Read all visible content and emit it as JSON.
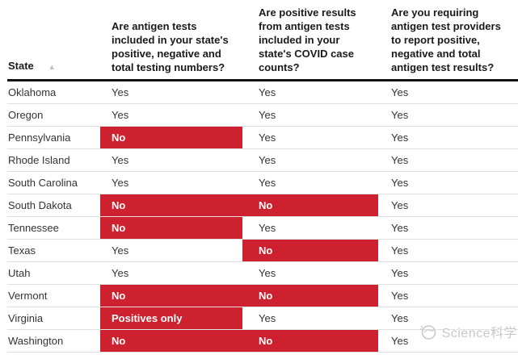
{
  "chart_data": {
    "type": "table",
    "columns": [
      {
        "label": "State",
        "sortable": true,
        "sort_icon": "ascending-triangle"
      },
      {
        "label": "Are antigen tests\nincluded in your state's\npositive, negative and\ntotal testing numbers?"
      },
      {
        "label": "Are positive results\nfrom antigen tests\nincluded in your\nstate's COVID case\ncounts?"
      },
      {
        "label": "Are you requiring\nantigen test providers\nto report positive,\nnegative and total\nantigen test results?"
      }
    ],
    "rows": [
      {
        "state": "Oklahoma",
        "answers": [
          {
            "text": "Yes",
            "highlight": false
          },
          {
            "text": "Yes",
            "highlight": false
          },
          {
            "text": "Yes",
            "highlight": false
          }
        ]
      },
      {
        "state": "Oregon",
        "answers": [
          {
            "text": "Yes",
            "highlight": false
          },
          {
            "text": "Yes",
            "highlight": false
          },
          {
            "text": "Yes",
            "highlight": false
          }
        ]
      },
      {
        "state": "Pennsylvania",
        "answers": [
          {
            "text": "No",
            "highlight": true
          },
          {
            "text": "Yes",
            "highlight": false
          },
          {
            "text": "Yes",
            "highlight": false
          }
        ]
      },
      {
        "state": "Rhode Island",
        "answers": [
          {
            "text": "Yes",
            "highlight": false
          },
          {
            "text": "Yes",
            "highlight": false
          },
          {
            "text": "Yes",
            "highlight": false
          }
        ]
      },
      {
        "state": "South Carolina",
        "answers": [
          {
            "text": "Yes",
            "highlight": false
          },
          {
            "text": "Yes",
            "highlight": false
          },
          {
            "text": "Yes",
            "highlight": false
          }
        ]
      },
      {
        "state": "South Dakota",
        "answers": [
          {
            "text": "No",
            "highlight": true
          },
          {
            "text": "No",
            "highlight": true
          },
          {
            "text": "Yes",
            "highlight": false
          }
        ]
      },
      {
        "state": "Tennessee",
        "answers": [
          {
            "text": "No",
            "highlight": true
          },
          {
            "text": "Yes",
            "highlight": false
          },
          {
            "text": "Yes",
            "highlight": false
          }
        ]
      },
      {
        "state": "Texas",
        "answers": [
          {
            "text": "Yes",
            "highlight": false
          },
          {
            "text": "No",
            "highlight": true
          },
          {
            "text": "Yes",
            "highlight": false
          }
        ]
      },
      {
        "state": "Utah",
        "answers": [
          {
            "text": "Yes",
            "highlight": false
          },
          {
            "text": "Yes",
            "highlight": false
          },
          {
            "text": "Yes",
            "highlight": false
          }
        ]
      },
      {
        "state": "Vermont",
        "answers": [
          {
            "text": "No",
            "highlight": true
          },
          {
            "text": "No",
            "highlight": true
          },
          {
            "text": "Yes",
            "highlight": false
          }
        ]
      },
      {
        "state": "Virginia",
        "answers": [
          {
            "text": "Positives only",
            "highlight": true
          },
          {
            "text": "Yes",
            "highlight": false
          },
          {
            "text": "Yes",
            "highlight": false
          }
        ]
      },
      {
        "state": "Washington",
        "answers": [
          {
            "text": "No",
            "highlight": true
          },
          {
            "text": "No",
            "highlight": true
          },
          {
            "text": "Yes",
            "highlight": false
          }
        ]
      }
    ]
  },
  "header": {
    "sort_indicator": "▲"
  },
  "watermark": {
    "text": "Science科学",
    "icon": "science-logo-icon"
  },
  "colors": {
    "highlight": "#cd212f",
    "highlight_text": "#ffffff",
    "body_text": "#333333",
    "header_text": "#1a1a1a",
    "header_rule": "#121212",
    "row_divider": "#e1e1e1",
    "watermark_gray": "#c8c8c8",
    "sort_arrow": "#bdbdbd"
  }
}
